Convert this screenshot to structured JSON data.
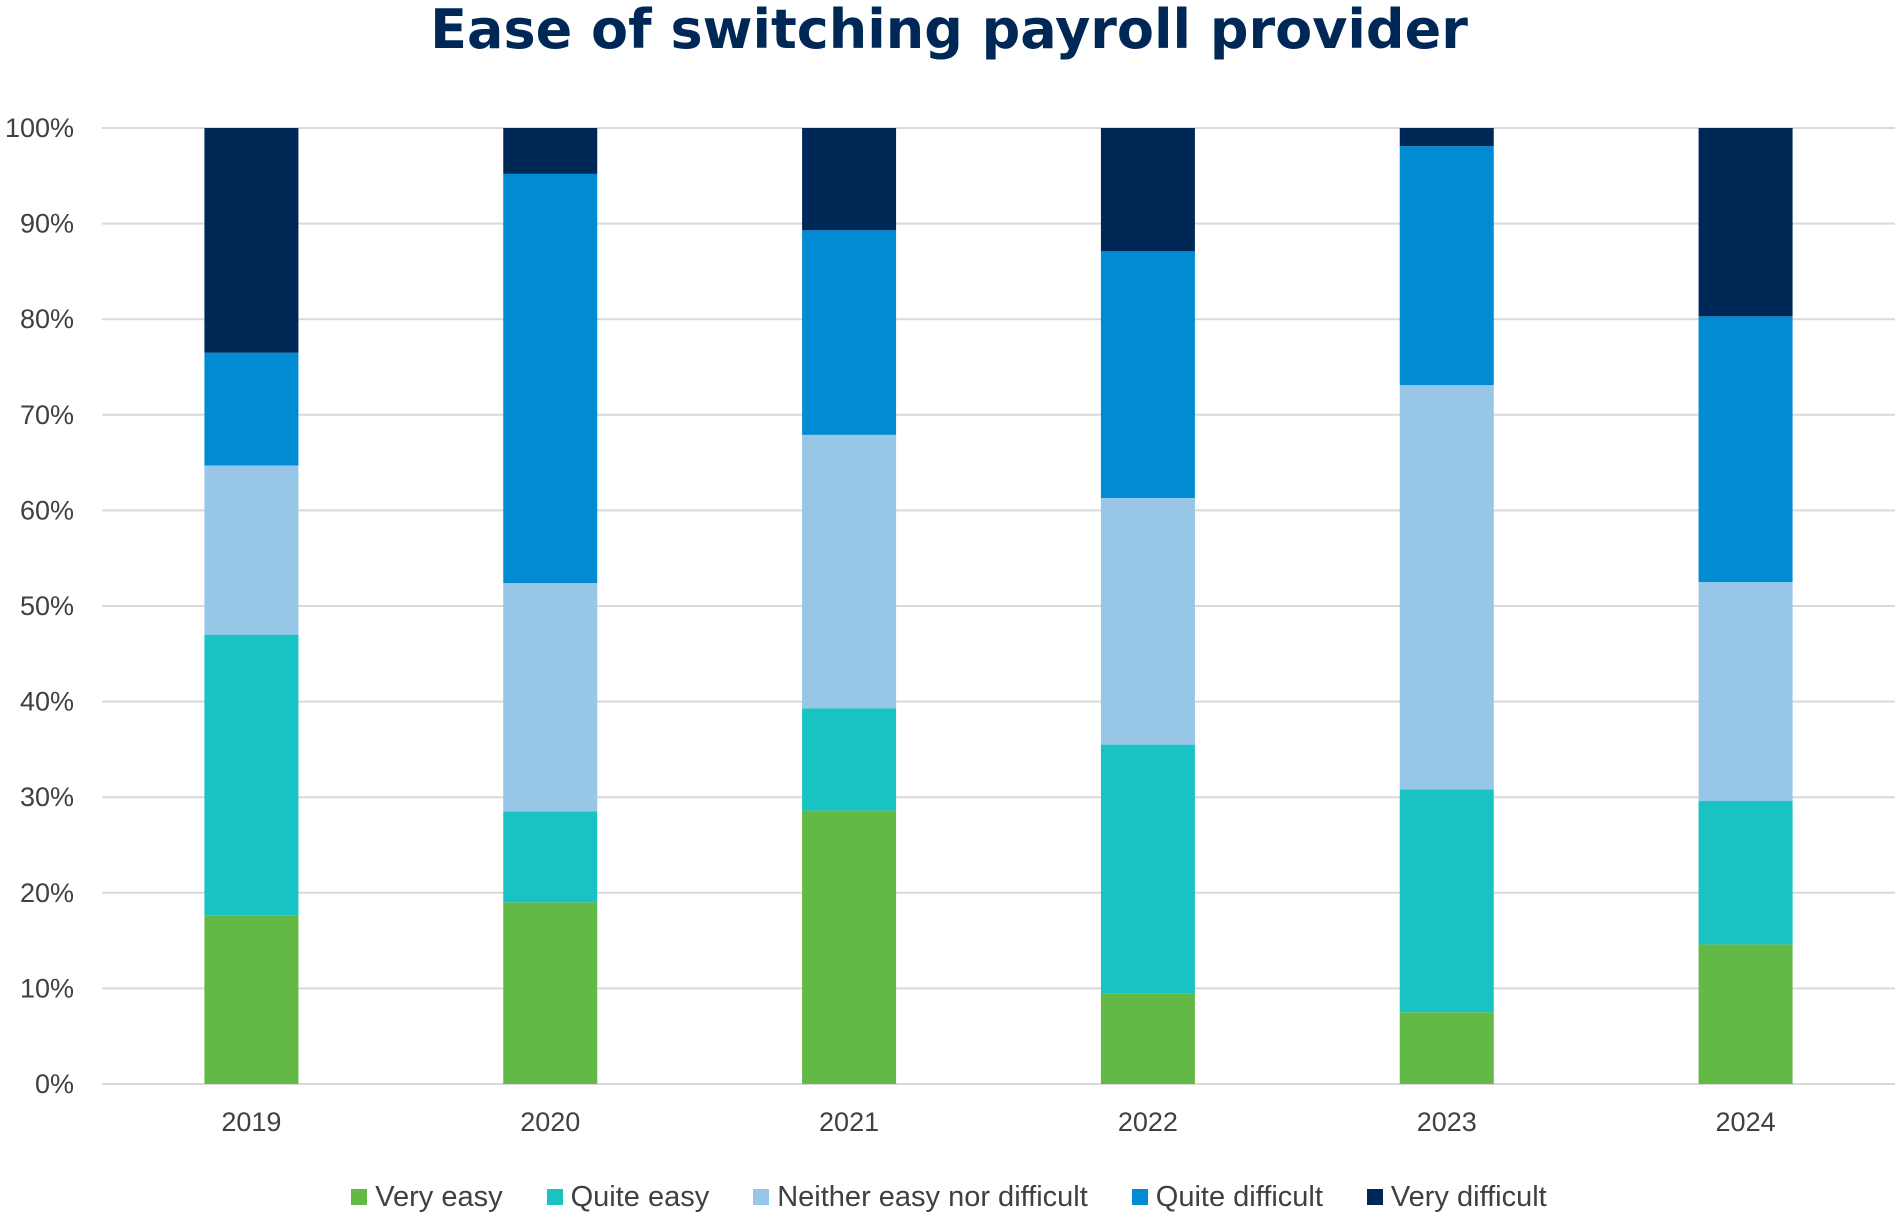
{
  "chart_data": {
    "type": "bar",
    "stacked": true,
    "title": "Ease of switching payroll provider",
    "xlabel": "",
    "ylabel": "",
    "ylim": [
      0,
      100
    ],
    "y_ticks": [
      "0%",
      "10%",
      "20%",
      "30%",
      "40%",
      "50%",
      "60%",
      "70%",
      "80%",
      "90%",
      "100%"
    ],
    "grid": true,
    "legend_position": "bottom",
    "categories": [
      "2019",
      "2020",
      "2021",
      "2022",
      "2023",
      "2024"
    ],
    "series": [
      {
        "name": "Very easy",
        "color": "#62b946",
        "values": [
          17.6,
          19.0,
          28.6,
          9.5,
          7.5,
          14.6
        ]
      },
      {
        "name": "Quite easy",
        "color": "#1ac3c3",
        "values": [
          29.4,
          9.5,
          10.7,
          26.0,
          23.3,
          15.0
        ]
      },
      {
        "name": "Neither easy nor difficult",
        "color": "#97c6e7",
        "values": [
          17.7,
          23.9,
          28.6,
          25.8,
          42.3,
          22.9
        ]
      },
      {
        "name": "Quite difficult",
        "color": "#008bd2",
        "values": [
          11.8,
          42.8,
          21.4,
          25.8,
          25.0,
          27.8
        ]
      },
      {
        "name": "Very difficult",
        "color": "#002856",
        "values": [
          23.5,
          4.8,
          10.7,
          12.9,
          1.9,
          19.7
        ]
      }
    ]
  }
}
